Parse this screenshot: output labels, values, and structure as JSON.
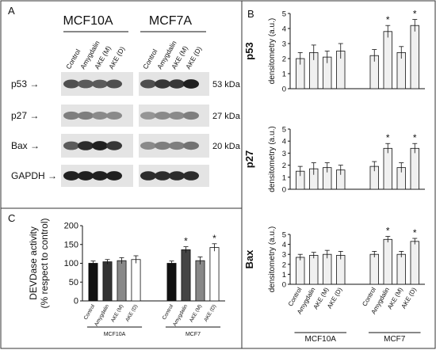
{
  "panels": {
    "A": {
      "letter": "A",
      "cell_lines": [
        "MCF10A",
        "MCF7A"
      ],
      "lanes": [
        "Control",
        "Amygdalin",
        "AKE (M)",
        "AKE (D)"
      ],
      "blots": [
        {
          "name": "p53",
          "arrow": "p53 →",
          "kda": "53 kDa"
        },
        {
          "name": "p27",
          "arrow": "p27 →",
          "kda": "27 kDa"
        },
        {
          "name": "Bax",
          "arrow": "Bax →",
          "kda": "20 kDa"
        },
        {
          "name": "GAPDH",
          "arrow": "GAPDH →",
          "kda": ""
        }
      ]
    },
    "B": {
      "letter": "B"
    },
    "C": {
      "letter": "C"
    }
  },
  "chart_data": [
    {
      "panel": "B",
      "type": "bar",
      "title": "p53",
      "ylabel": "densitometry (a.u.)",
      "ylim": [
        0,
        5
      ],
      "yticks": [
        0,
        1,
        2,
        3,
        4,
        5
      ],
      "categories": [
        "Control",
        "Amygdalin",
        "AKE (M)",
        "AKE (D)",
        "Control",
        "Amygdalin",
        "AKE (M)",
        "AKE (D)"
      ],
      "groups": [
        "MCF10A",
        "MCF7"
      ],
      "values": [
        2.0,
        2.4,
        2.1,
        2.5,
        2.2,
        3.8,
        2.4,
        4.2
      ],
      "errors": [
        0.4,
        0.5,
        0.4,
        0.5,
        0.4,
        0.4,
        0.4,
        0.4
      ],
      "significant": [
        false,
        false,
        false,
        false,
        false,
        true,
        false,
        true
      ],
      "sig_mark": "*"
    },
    {
      "panel": "B",
      "type": "bar",
      "title": "p27",
      "ylabel": "densitometry (a.u.)",
      "ylim": [
        0,
        5
      ],
      "yticks": [
        0,
        1,
        2,
        3,
        4,
        5
      ],
      "categories": [
        "Control",
        "Amygdalin",
        "AKE (M)",
        "AKE (D)",
        "Control",
        "Amygdalin",
        "AKE (M)",
        "AKE (D)"
      ],
      "groups": [
        "MCF10A",
        "MCF7"
      ],
      "values": [
        1.5,
        1.7,
        1.8,
        1.6,
        1.9,
        3.4,
        1.8,
        3.4
      ],
      "errors": [
        0.4,
        0.5,
        0.4,
        0.4,
        0.4,
        0.4,
        0.4,
        0.4
      ],
      "significant": [
        false,
        false,
        false,
        false,
        false,
        true,
        false,
        true
      ],
      "sig_mark": "*"
    },
    {
      "panel": "B",
      "type": "bar",
      "title": "Bax",
      "ylabel": "densitometry (a.u.)",
      "ylim": [
        0,
        5
      ],
      "yticks": [
        0,
        1,
        2,
        3,
        4,
        5
      ],
      "categories": [
        "Control",
        "Amygdalin",
        "AKE (M)",
        "AKE (D)",
        "Control",
        "Amygdalin",
        "AKE (M)",
        "AKE (D)"
      ],
      "groups": [
        "MCF10A",
        "MCF7"
      ],
      "values": [
        2.7,
        2.9,
        3.0,
        2.9,
        3.0,
        4.5,
        3.0,
        4.3
      ],
      "errors": [
        0.3,
        0.3,
        0.4,
        0.4,
        0.3,
        0.3,
        0.3,
        0.3
      ],
      "significant": [
        false,
        false,
        false,
        false,
        false,
        true,
        false,
        true
      ],
      "sig_mark": "*"
    },
    {
      "panel": "C",
      "type": "bar",
      "title": "",
      "ylabel": "DEVDase activity",
      "ylabel2": "(% respect to control)",
      "ylim": [
        0,
        200
      ],
      "yticks": [
        0,
        50,
        100,
        150,
        200
      ],
      "categories": [
        "Control",
        "Amygdalin",
        "AKE (M)",
        "AKE (D)",
        "Control",
        "Amygdalin",
        "AKE (M)",
        "AKE (D)"
      ],
      "groups": [
        "MCF10A",
        "MCF7"
      ],
      "values": [
        100,
        104,
        107,
        110,
        100,
        136,
        107,
        142
      ],
      "errors": [
        6,
        6,
        8,
        10,
        6,
        8,
        10,
        10
      ],
      "colors": [
        "#111111",
        "#333333",
        "#888888",
        "#ffffff",
        "#111111",
        "#444444",
        "#888888",
        "#ffffff"
      ],
      "significant": [
        false,
        false,
        false,
        false,
        false,
        true,
        false,
        true
      ],
      "sig_mark": "*"
    }
  ]
}
